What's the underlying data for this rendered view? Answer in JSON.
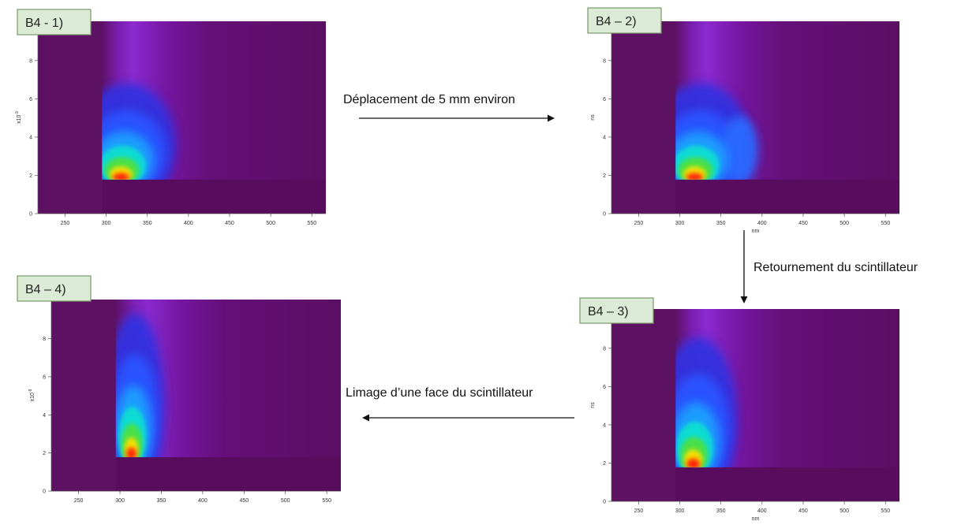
{
  "panels": [
    {
      "label": "B4 - 1)",
      "ylabel": {
        "base": "x10",
        "exponent": "-9"
      },
      "xlim": [
        217,
        567
      ],
      "ylim": [
        0,
        10.05
      ],
      "xticks": [
        250,
        300,
        350,
        400,
        450,
        500,
        550
      ],
      "yticks": [
        0,
        2,
        4,
        6,
        8
      ]
    },
    {
      "label": "B4 – 2)",
      "ylabel": "ns",
      "xlabel": "nm",
      "xlim": [
        217,
        567
      ],
      "ylim": [
        0,
        10.05
      ],
      "xticks": [
        250,
        300,
        350,
        400,
        450,
        500,
        550
      ],
      "yticks": [
        0,
        2,
        4,
        6,
        8
      ]
    },
    {
      "label": "B4 – 3)",
      "ylabel": "ns",
      "xlabel": "nm",
      "xlim": [
        217,
        567
      ],
      "ylim": [
        0,
        10.05
      ],
      "xticks": [
        250,
        300,
        350,
        400,
        450,
        500,
        550
      ],
      "yticks": [
        0,
        2,
        4,
        6,
        8
      ]
    },
    {
      "label": "B4 – 4)",
      "ylabel": {
        "base": "x10",
        "exponent": "-9"
      },
      "xlim": [
        217,
        567
      ],
      "ylim": [
        0,
        10.05
      ],
      "xticks": [
        250,
        300,
        350,
        400,
        450,
        500,
        550
      ],
      "yticks": [
        0,
        2,
        4,
        6,
        8
      ]
    }
  ],
  "arrows": [
    {
      "label": "Déplacement de 5 mm environ"
    },
    {
      "label": "Retournement du scintillateur"
    },
    {
      "label": "Limage d’une face du scintillateur"
    }
  ]
}
